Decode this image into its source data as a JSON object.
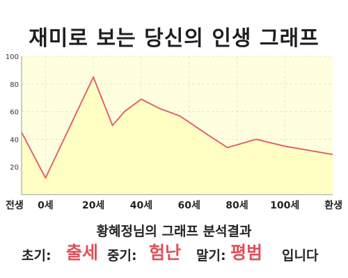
{
  "header": {
    "title": "재미로 보는 당신의 인생 그래프"
  },
  "chart_data": {
    "type": "area",
    "title": "재미로 보는 당신의 인생 그래프",
    "xlabel": "",
    "ylabel": "",
    "x_ticks": [
      {
        "x": -10,
        "label": "전생"
      },
      {
        "x": 0,
        "label": "0세"
      },
      {
        "x": 20,
        "label": "20세"
      },
      {
        "x": 40,
        "label": "40세"
      },
      {
        "x": 60,
        "label": "60세"
      },
      {
        "x": 80,
        "label": "80세"
      },
      {
        "x": 100,
        "label": "100세"
      },
      {
        "x": 120,
        "label": "환생"
      }
    ],
    "x": [
      -10,
      0,
      20,
      28,
      33,
      40,
      48,
      56,
      68,
      76,
      88,
      100,
      120
    ],
    "y": [
      45,
      12,
      85,
      50,
      60,
      69,
      62,
      57,
      43,
      34,
      40,
      35,
      29
    ],
    "ylim": [
      0,
      100
    ],
    "yticks": [
      20,
      40,
      60,
      80,
      100
    ],
    "grid": true,
    "colors": {
      "fill": "#ffffc4",
      "line": "#e06468",
      "plot_bg": "#ffffe0",
      "grid": "#e8e8c8"
    }
  },
  "result": {
    "heading": "황혜정님의 그래프 분석결과",
    "early_label": "초기:",
    "early_value": "출세",
    "middle_label": "중기:",
    "middle_value": "험난",
    "late_label": "말기:",
    "late_value": "평범",
    "ending": "입니다"
  }
}
